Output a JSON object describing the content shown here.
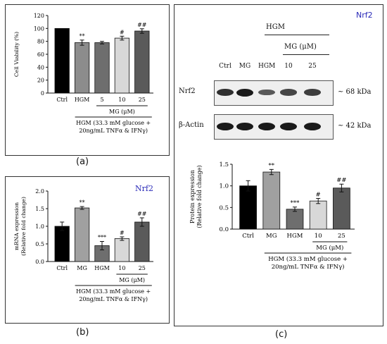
{
  "chart_data": [
    {
      "type": "bar",
      "panel": "(a)",
      "title": "",
      "ylabel": "Cell Viability (%)",
      "ylim": [
        0,
        120
      ],
      "yticks": [
        "0",
        "20",
        "40",
        "60",
        "80",
        "100",
        "120"
      ],
      "categories": [
        "Ctrl",
        "HGM",
        "5",
        "10",
        "25"
      ],
      "values": [
        100,
        78,
        78,
        85,
        96
      ],
      "errors": [
        0,
        4,
        2,
        3,
        3.5
      ],
      "significance": [
        "",
        "**",
        "",
        "#",
        "##"
      ],
      "colors": [
        "#000000",
        "#8c8c8c",
        "#6e6e6e",
        "#d8d8d8",
        "#5a5a5a"
      ],
      "group_label": "MG (μM)",
      "condition_label_1": "HGM (33.3 mM glucose +",
      "condition_label_2": "20ng/mL TNFα & IFNγ)"
    },
    {
      "type": "bar",
      "panel": "(b)",
      "title": "Nrf2",
      "ylabel_1": "mRNA expression",
      "ylabel_2": "(Relative fold change)",
      "ylim": [
        0,
        2.0
      ],
      "yticks": [
        "0.0",
        "0.5",
        "1.0",
        "1.5",
        "2.0"
      ],
      "categories": [
        "Ctrl",
        "MG",
        "HGM",
        "10",
        "25"
      ],
      "values": [
        1.0,
        1.52,
        0.45,
        0.65,
        1.12
      ],
      "errors": [
        0.12,
        0.04,
        0.12,
        0.05,
        0.12
      ],
      "significance": [
        "",
        "**",
        "***",
        "#",
        "##"
      ],
      "colors": [
        "#000000",
        "#a0a0a0",
        "#6e6e6e",
        "#d8d8d8",
        "#5a5a5a"
      ],
      "group_label": "MG (μM)",
      "condition_label_1": "HGM (33.3 mM glucose +",
      "condition_label_2": "20ng/mL TNFα & IFNγ)"
    },
    {
      "type": "bar",
      "panel": "(c)",
      "title": "Nrf2",
      "ylabel_1": "Protein expression",
      "ylabel_2": "(Relative fold change)",
      "ylim": [
        0,
        1.5
      ],
      "yticks": [
        "0.0",
        "0.5",
        "1.0",
        "1.5"
      ],
      "categories": [
        "Ctrl",
        "MG",
        "HGM",
        "10",
        "25"
      ],
      "values": [
        1.0,
        1.32,
        0.46,
        0.65,
        0.95
      ],
      "errors": [
        0.12,
        0.06,
        0.05,
        0.06,
        0.09
      ],
      "significance": [
        "",
        "**",
        "***",
        "#",
        "##"
      ],
      "colors": [
        "#000000",
        "#a0a0a0",
        "#6e6e6e",
        "#d8d8d8",
        "#5a5a5a"
      ],
      "group_label": "MG (μM)",
      "condition_label_1": "HGM (33.3 mM glucose +",
      "condition_label_2": "20ng/mL TNFα & IFNγ)"
    }
  ],
  "panel_labels": {
    "a": "(a)",
    "b": "(b)",
    "c": "(c)"
  },
  "blot": {
    "title": "Nrf2",
    "hgm_label": "HGM",
    "mg_label": "MG (μM)",
    "lanes": [
      "Ctrl",
      "MG",
      "HGM",
      "10",
      "25"
    ],
    "rows": [
      {
        "name": "Nrf2",
        "size": "~ 68 kDa",
        "intensity": [
          0.85,
          1.0,
          0.55,
          0.7,
          0.75
        ]
      },
      {
        "name": "β-Actin",
        "size": "~ 42 kDa",
        "intensity": [
          1.0,
          1.0,
          1.0,
          1.0,
          1.0
        ]
      }
    ]
  }
}
